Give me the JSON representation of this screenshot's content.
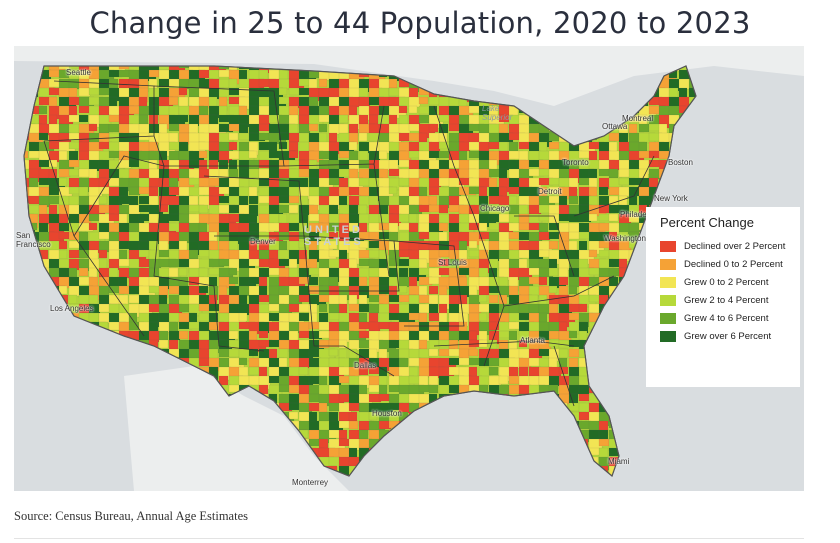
{
  "title": "Change in 25 to 44 Population, 2020 to 2023",
  "source": "Source: Census Bureau, Annual Age Estimates",
  "colors": {
    "declined_over_2": "#e8452e",
    "declined_0_2": "#f5a236",
    "grew_0_2": "#f2e554",
    "grew_2_4": "#b6d93a",
    "grew_4_6": "#6aa82c",
    "grew_over_6": "#226b25",
    "land": "#eceeee",
    "water": "#d9dde0"
  },
  "legend": {
    "title": "Percent Change",
    "items": [
      {
        "label": "Declined over 2 Percent",
        "color": "#e8452e"
      },
      {
        "label": "Declined 0 to 2 Percent",
        "color": "#f5a236"
      },
      {
        "label": "Grew 0 to 2 Percent",
        "color": "#f2e554"
      },
      {
        "label": "Grew 2 to 4 Percent",
        "color": "#b6d93a"
      },
      {
        "label": "Grew 4 to 6 Percent",
        "color": "#6aa82c"
      },
      {
        "label": "Grew over 6 Percent",
        "color": "#226b25"
      }
    ]
  },
  "places": {
    "seattle": "Seattle",
    "san_francisco": "San\nFrancisco",
    "los_angeles": "Los Angeles",
    "denver": "Denver",
    "dallas": "Dallas",
    "houston": "Houston",
    "chicago": "Chicago",
    "detroit": "Detroit",
    "st_louis": "St Louis",
    "atlanta": "Atlanta",
    "miami": "Miami",
    "new_york": "New York",
    "philadelphia": "Philadelphia",
    "washington": "Washington",
    "boston": "Boston",
    "toronto": "Toronto",
    "montreal": "Montreal",
    "ottawa": "Ottawa",
    "monterrey": "Monterrey"
  },
  "watermarks": {
    "united_states": "UNITED\nSTATES",
    "lake_superior": "Lake\nSuperior"
  }
}
